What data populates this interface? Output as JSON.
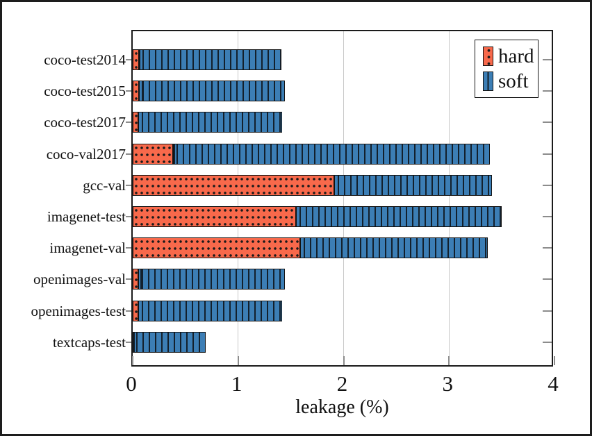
{
  "chart_data": {
    "type": "bar",
    "orientation": "horizontal",
    "stacked": true,
    "title": "",
    "xlabel": "leakage (%)",
    "ylabel": "",
    "xlim": [
      0,
      4
    ],
    "xticks": [
      "0",
      "1",
      "2",
      "3",
      "4"
    ],
    "grid": true,
    "legend_position": "top-right",
    "categories": [
      "coco-test2014",
      "coco-test2015",
      "coco-test2017",
      "coco-val2017",
      "gcc-val",
      "imagenet-test",
      "imagenet-val",
      "openimages-val",
      "openimages-test",
      "textcaps-test"
    ],
    "series": [
      {
        "name": "hard",
        "pattern": "dots",
        "color": "#f8694b",
        "values": [
          0.06,
          0.06,
          0.05,
          0.38,
          1.91,
          1.55,
          1.59,
          0.05,
          0.05,
          0
        ]
      },
      {
        "name": "soft",
        "pattern": "vertical-lines",
        "color": "#3c7eb5",
        "values": [
          1.35,
          1.38,
          1.37,
          3.01,
          1.5,
          1.95,
          1.78,
          1.39,
          1.37,
          0.69
        ]
      }
    ]
  },
  "colors": {
    "hard": "#f8694b",
    "soft": "#3c7eb5",
    "frame": "#1b1b1b",
    "gridline": "#c9c9c9",
    "tick": "#8c8c8c",
    "text": "#111111",
    "background": "#ffffff"
  }
}
